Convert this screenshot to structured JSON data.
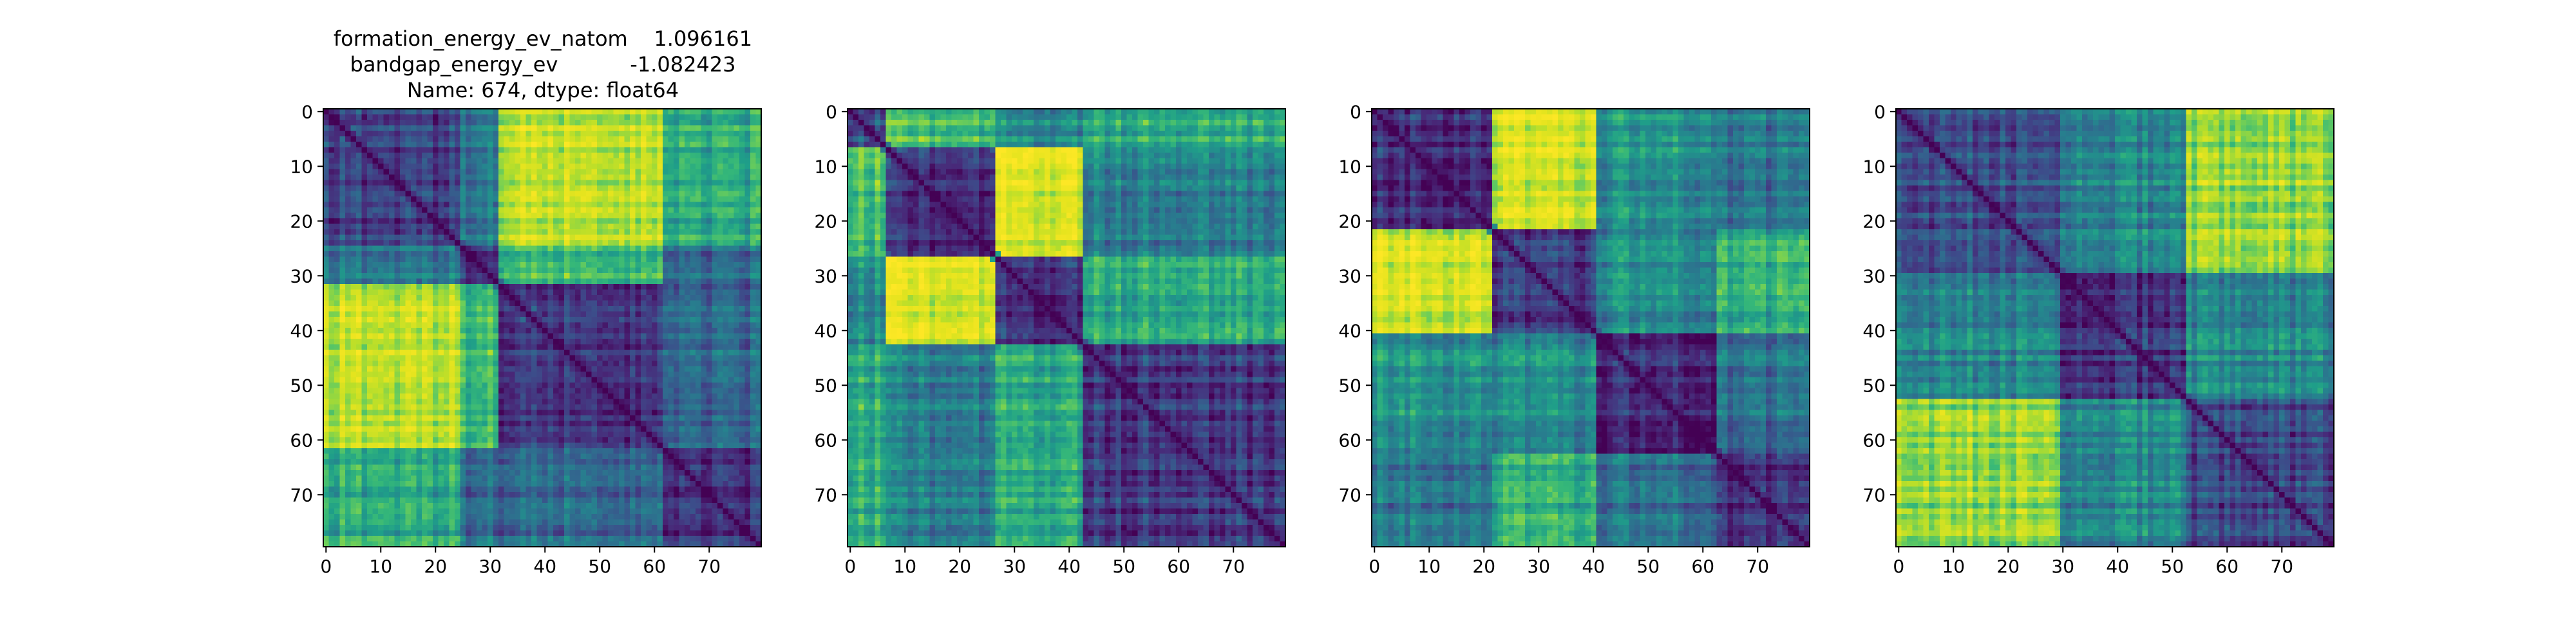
{
  "figure": {
    "title_lines": [
      "formation_energy_ev_natom    1.096161",
      "bandgap_energy_ev           -1.082423",
      "Name: 674, dtype: float64"
    ]
  },
  "colors": {
    "colormap": "viridis",
    "low": "#440154",
    "mid": "#21918c",
    "high": "#fde725",
    "frame": "#000000"
  },
  "chart_data": [
    {
      "type": "heatmap",
      "title": "formation_energy_ev_natom    1.096161\nbandgap_energy_ev           -1.082423\nName: 674, dtype: float64",
      "size": 80,
      "xlim": [
        0,
        79
      ],
      "ylim": [
        79,
        0
      ],
      "x_ticks": [
        0,
        10,
        20,
        30,
        40,
        50,
        60,
        70
      ],
      "y_ticks": [
        0,
        10,
        20,
        30,
        40,
        50,
        60,
        70
      ],
      "groups": [
        {
          "start": 0,
          "end": 25
        },
        {
          "start": 25,
          "end": 32
        },
        {
          "start": 32,
          "end": 62
        },
        {
          "start": 62,
          "end": 80
        }
      ],
      "block_distances": [
        [
          0.18,
          0.35,
          0.82,
          0.55
        ],
        [
          0.35,
          0.12,
          0.6,
          0.3
        ],
        [
          0.82,
          0.6,
          0.15,
          0.3
        ],
        [
          0.55,
          0.3,
          0.3,
          0.12
        ]
      ],
      "diagonal": 0,
      "grid": false
    },
    {
      "type": "heatmap",
      "title": "",
      "size": 80,
      "xlim": [
        0,
        79
      ],
      "ylim": [
        79,
        0
      ],
      "x_ticks": [
        0,
        10,
        20,
        30,
        40,
        50,
        60,
        70
      ],
      "y_ticks": [
        0,
        10,
        20,
        30,
        40,
        50,
        60,
        70
      ],
      "groups": [
        {
          "start": 0,
          "end": 7
        },
        {
          "start": 7,
          "end": 27
        },
        {
          "start": 27,
          "end": 43
        },
        {
          "start": 43,
          "end": 80
        }
      ],
      "block_distances": [
        [
          0.2,
          0.62,
          0.42,
          0.55
        ],
        [
          0.62,
          0.12,
          0.88,
          0.38
        ],
        [
          0.42,
          0.88,
          0.12,
          0.55
        ],
        [
          0.55,
          0.38,
          0.55,
          0.15
        ]
      ],
      "diagonal": 0,
      "grid": false
    },
    {
      "type": "heatmap",
      "title": "",
      "size": 80,
      "xlim": [
        0,
        79
      ],
      "ylim": [
        79,
        0
      ],
      "x_ticks": [
        0,
        10,
        20,
        30,
        40,
        50,
        60,
        70
      ],
      "y_ticks": [
        0,
        10,
        20,
        30,
        40,
        50,
        60,
        70
      ],
      "groups": [
        {
          "start": 0,
          "end": 22
        },
        {
          "start": 22,
          "end": 41
        },
        {
          "start": 41,
          "end": 63
        },
        {
          "start": 63,
          "end": 80
        }
      ],
      "block_distances": [
        [
          0.12,
          0.85,
          0.45,
          0.35
        ],
        [
          0.85,
          0.12,
          0.42,
          0.55
        ],
        [
          0.45,
          0.42,
          0.1,
          0.32
        ],
        [
          0.35,
          0.55,
          0.32,
          0.1
        ]
      ],
      "diagonal": 0,
      "grid": false
    },
    {
      "type": "heatmap",
      "title": "",
      "size": 80,
      "xlim": [
        0,
        79
      ],
      "ylim": [
        79,
        0
      ],
      "x_ticks": [
        0,
        10,
        20,
        30,
        40,
        50,
        60,
        70
      ],
      "y_ticks": [
        0,
        10,
        20,
        30,
        40,
        50,
        60,
        70
      ],
      "groups": [
        {
          "start": 0,
          "end": 30
        },
        {
          "start": 30,
          "end": 53
        },
        {
          "start": 53,
          "end": 80
        }
      ],
      "block_distances": [
        [
          0.22,
          0.42,
          0.75
        ],
        [
          0.42,
          0.15,
          0.42
        ],
        [
          0.75,
          0.42,
          0.18
        ]
      ],
      "diagonal": 0,
      "grid": false
    }
  ]
}
